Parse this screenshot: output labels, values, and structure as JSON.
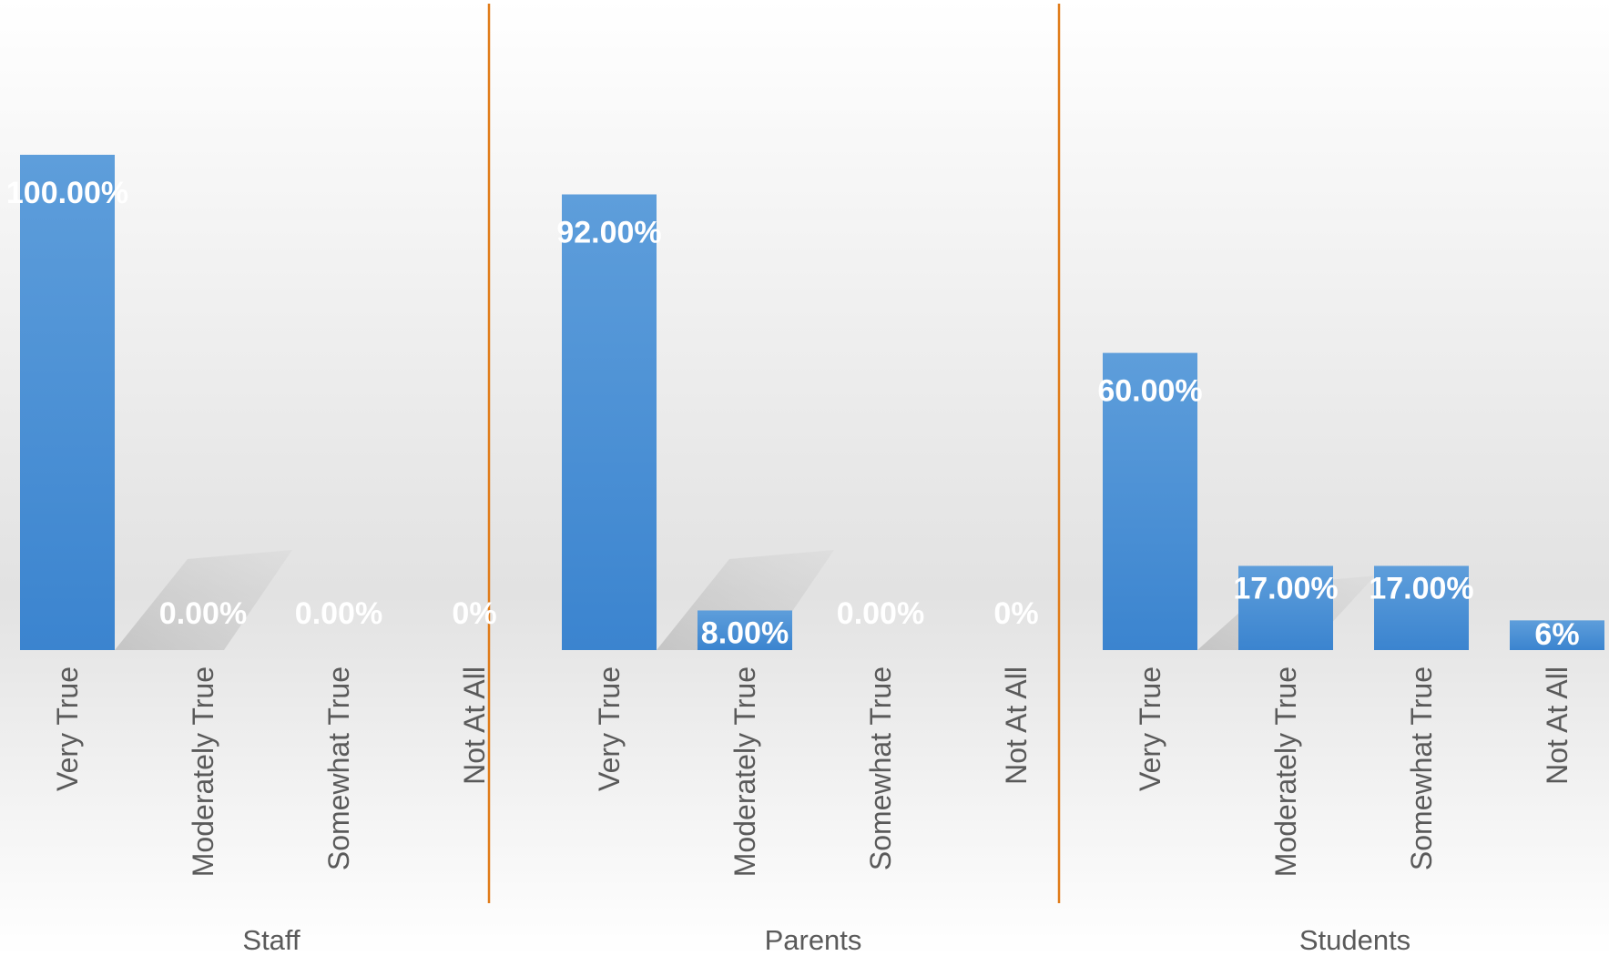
{
  "chart_data": {
    "type": "bar",
    "title": "",
    "xlabel": "",
    "ylabel": "",
    "ylim": [
      0,
      100
    ],
    "grid": false,
    "legend": "none",
    "colors": {
      "bar": "#4a90d6",
      "bar_light": "#5e9edb",
      "bar_dark": "#3b84cf",
      "separator": "#e07b18"
    },
    "categories": [
      "Very True",
      "Moderately True",
      "Somewhat True",
      "Not At All"
    ],
    "groups": [
      {
        "name": "Staff",
        "values": [
          100,
          0,
          0,
          0
        ],
        "labels": [
          "100.00%",
          "0.00%",
          "0.00%",
          "0%"
        ]
      },
      {
        "name": "Parents",
        "values": [
          92,
          8,
          0,
          0
        ],
        "labels": [
          "92.00%",
          "8.00%",
          "0.00%",
          "0%"
        ]
      },
      {
        "name": "Students",
        "values": [
          60,
          17,
          17,
          6
        ],
        "labels": [
          "60.00%",
          "17.00%",
          "17.00%",
          "6%"
        ]
      }
    ]
  }
}
